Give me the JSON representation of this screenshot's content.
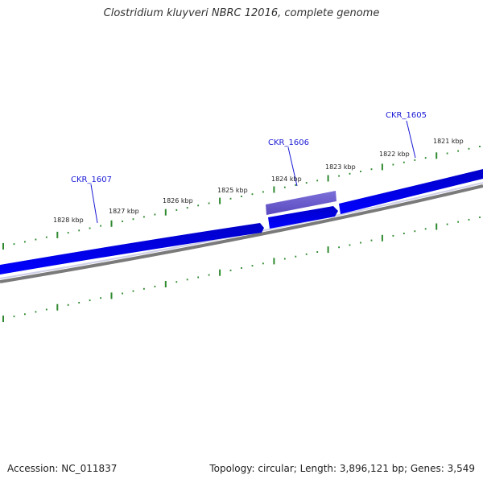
{
  "title": "Clostridium kluyveri NBRC 12016, complete genome",
  "scale_labels": [
    "1828 kbp",
    "1827 kbp",
    "1826 kbp",
    "1825 kbp",
    "1824 kbp",
    "1823 kbp",
    "1822 kbp",
    "1821 kbp"
  ],
  "genes": [
    {
      "name": "CKR_1607"
    },
    {
      "name": "CKR_1606"
    },
    {
      "name": "CKR_1605"
    }
  ],
  "footer": {
    "accession": "Accession: NC_011837",
    "summary": "Topology: circular; Length: 3,896,121 bp; Genes: 3,549"
  },
  "colors": {
    "forward_track": "#0000ee",
    "highlight_gene": "#6a5acd",
    "backbone": "#7a7a7a",
    "ticks": "#2f8a2f",
    "gene_label": "#1a1ad6"
  }
}
